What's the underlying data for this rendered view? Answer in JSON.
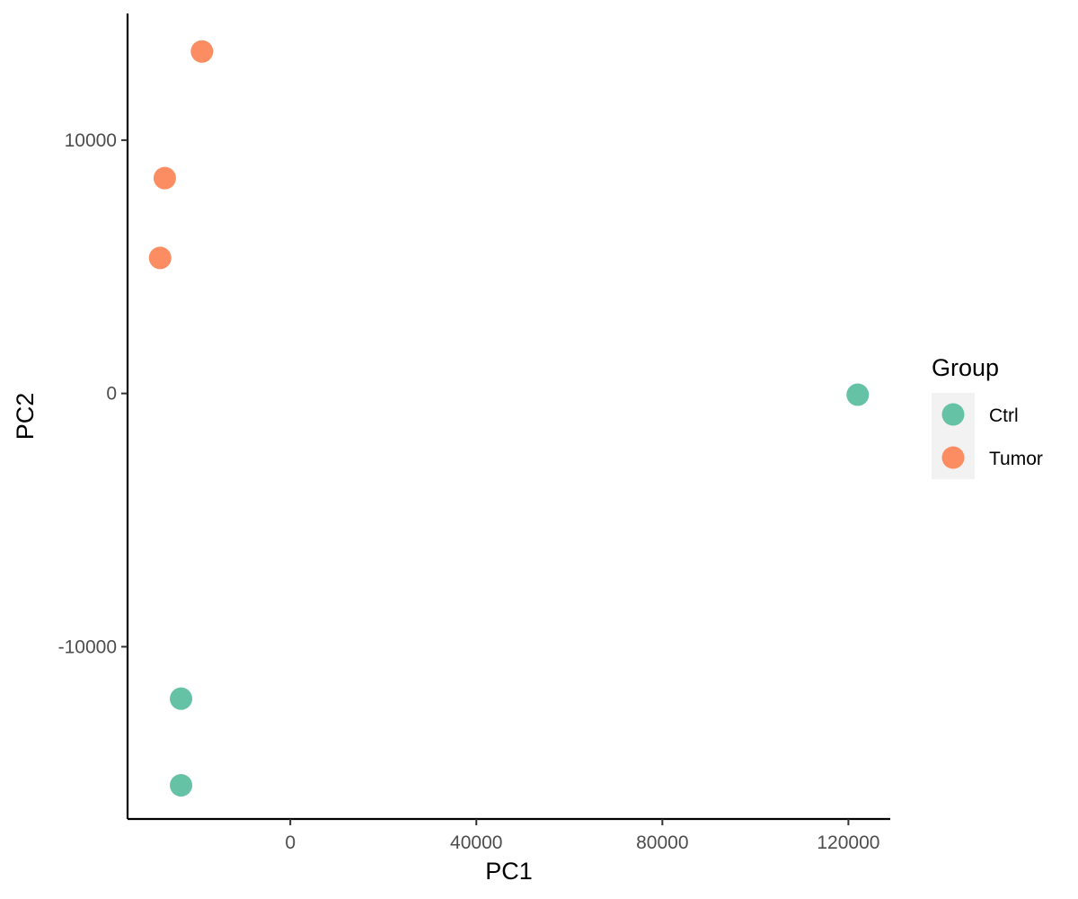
{
  "chart_data": {
    "type": "scatter",
    "title": "",
    "xlabel": "PC1",
    "ylabel": "PC2",
    "xlim": [
      -35000,
      129000
    ],
    "ylim": [
      -16800,
      15000
    ],
    "x_ticks": [
      0,
      40000,
      80000,
      120000
    ],
    "x_tick_labels": [
      "0",
      "40000",
      "80000",
      "120000"
    ],
    "y_ticks": [
      -10000,
      0,
      10000
    ],
    "y_tick_labels": [
      "-10000",
      "0",
      "10000"
    ],
    "grid": false,
    "legend": {
      "title": "Group",
      "position": "right",
      "entries": [
        "Ctrl",
        "Tumor"
      ]
    },
    "series": [
      {
        "name": "Ctrl",
        "color": "#66c2a5",
        "points": [
          {
            "x": 122000,
            "y": -50
          },
          {
            "x": -23500,
            "y": -12050
          },
          {
            "x": -23500,
            "y": -15470
          }
        ]
      },
      {
        "name": "Tumor",
        "color": "#fc8d62",
        "points": [
          {
            "x": -19000,
            "y": 13500
          },
          {
            "x": -27000,
            "y": 8500
          },
          {
            "x": -28000,
            "y": 5350
          }
        ]
      }
    ]
  }
}
